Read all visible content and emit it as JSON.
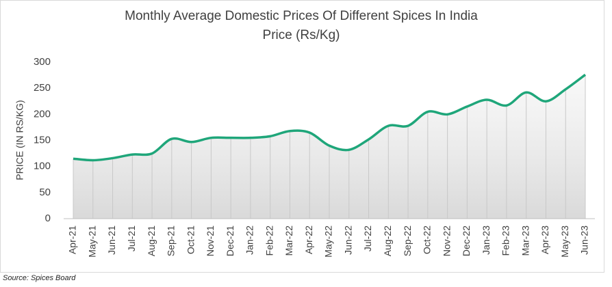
{
  "chart_data": {
    "type": "line",
    "title": "Monthly Average Domestic Prices Of Different Spices In India",
    "subtitle": "Price  (Rs/Kg)",
    "y_label": "PRICE (IN RS/KG)",
    "source": "Source:  Spices Board",
    "categories": [
      "Apr-21",
      "May-21",
      "Jun-21",
      "Jul-21",
      "Aug-21",
      "Sep-21",
      "Oct-21",
      "Nov-21",
      "Dec-21",
      "Jan-22",
      "Feb-22",
      "Mar-22",
      "Apr-22",
      "May-22",
      "Jun-22",
      "Jul-22",
      "Aug-22",
      "Sep-22",
      "Oct-22",
      "Nov-22",
      "Dec-22",
      "Jan-23",
      "Feb-23",
      "Mar-23",
      "Apr-23",
      "May-23",
      "Jun-23"
    ],
    "values": [
      115,
      112,
      116,
      123,
      125,
      153,
      147,
      155,
      155,
      155,
      158,
      168,
      165,
      140,
      132,
      152,
      178,
      178,
      205,
      200,
      215,
      228,
      217,
      242,
      225,
      248,
      276
    ],
    "color": "#1fa67a",
    "ylim": [
      0,
      300
    ],
    "yticks": [
      0,
      50,
      100,
      150,
      200,
      250,
      300
    ]
  }
}
